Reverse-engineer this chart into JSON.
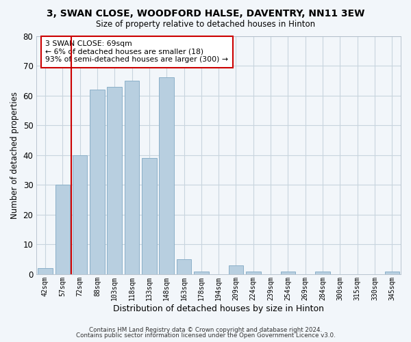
{
  "title": "3, SWAN CLOSE, WOODFORD HALSE, DAVENTRY, NN11 3EW",
  "subtitle": "Size of property relative to detached houses in Hinton",
  "xlabel": "Distribution of detached houses by size in Hinton",
  "ylabel": "Number of detached properties",
  "bar_labels": [
    "42sqm",
    "57sqm",
    "72sqm",
    "88sqm",
    "103sqm",
    "118sqm",
    "133sqm",
    "148sqm",
    "163sqm",
    "178sqm",
    "194sqm",
    "209sqm",
    "224sqm",
    "239sqm",
    "254sqm",
    "269sqm",
    "284sqm",
    "300sqm",
    "315sqm",
    "330sqm",
    "345sqm"
  ],
  "bar_values": [
    2,
    30,
    40,
    62,
    63,
    65,
    39,
    66,
    5,
    1,
    0,
    3,
    1,
    0,
    1,
    0,
    1,
    0,
    0,
    0,
    1
  ],
  "bar_color": "#b8cfe0",
  "bar_edge_color": "#8aafc8",
  "vline_x_index": 1.5,
  "vline_color": "#cc0000",
  "ylim": [
    0,
    80
  ],
  "yticks": [
    0,
    10,
    20,
    30,
    40,
    50,
    60,
    70,
    80
  ],
  "annotation_text": "3 SWAN CLOSE: 69sqm\n← 6% of detached houses are smaller (18)\n93% of semi-detached houses are larger (300) →",
  "annotation_box_color": "#ffffff",
  "annotation_box_edge": "#cc0000",
  "footer1": "Contains HM Land Registry data © Crown copyright and database right 2024.",
  "footer2": "Contains public sector information licensed under the Open Government Licence v3.0.",
  "bg_color": "#f2f6fa",
  "plot_bg_color": "#f2f6fa",
  "grid_color": "#c8d4de"
}
